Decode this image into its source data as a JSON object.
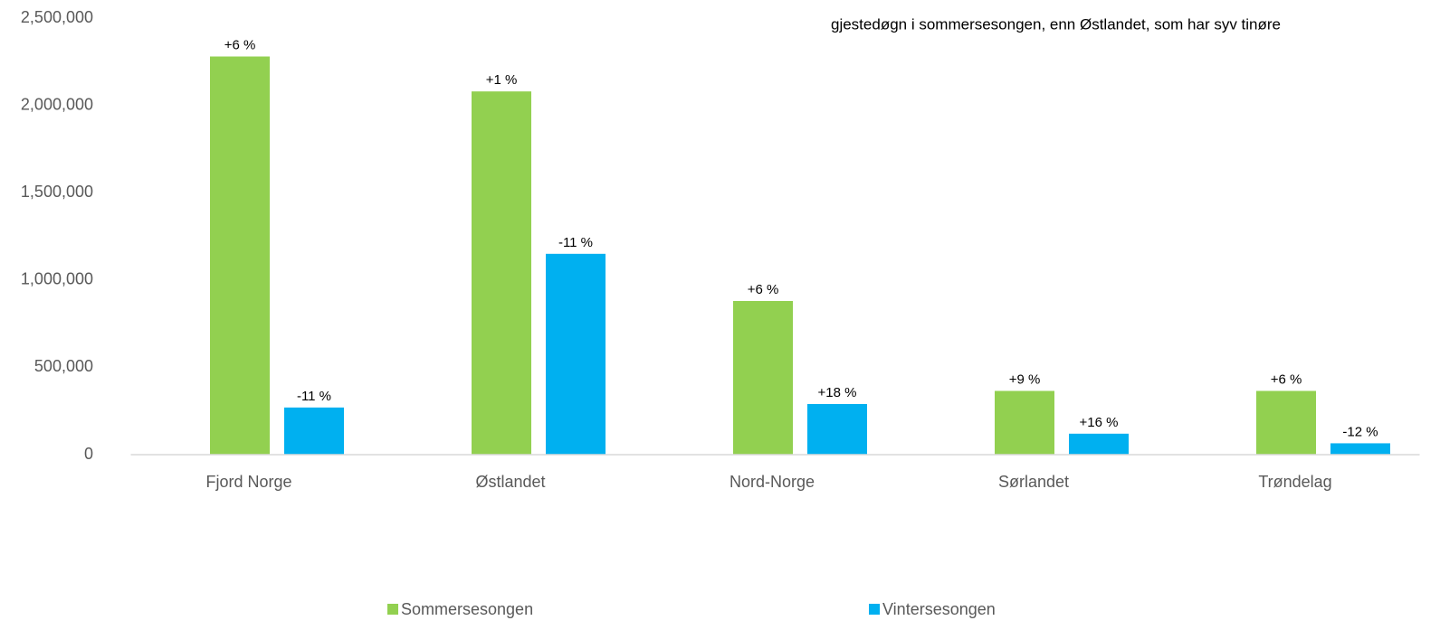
{
  "chart_data": {
    "type": "bar",
    "annotation": "gjestedøgn i sommersesongen, enn Østlandet, som har syv tinøre",
    "categories": [
      "Fjord Norge",
      "Østlandet",
      "Nord-Norge",
      "Sørlandet",
      "Trøndelag"
    ],
    "series": [
      {
        "name": "Sommersesongen",
        "color": "#92d050",
        "values": [
          2280000,
          2080000,
          880000,
          365000,
          365000
        ],
        "change_labels": [
          "+6 %",
          "+1 %",
          "+6 %",
          "+9 %",
          "+6 %"
        ]
      },
      {
        "name": "Vintersesongen",
        "color": "#00b0f0",
        "values": [
          270000,
          1150000,
          290000,
          120000,
          65000
        ],
        "change_labels": [
          "-11 %",
          "-11 %",
          "+18 %",
          "+16 %",
          "-12 %"
        ]
      }
    ],
    "ylim": [
      0,
      2500000
    ],
    "yticks": [
      0,
      {
        "value": 500000,
        "label": "500,000"
      },
      {
        "value": 1000000,
        "label": "1,000,000"
      },
      {
        "value": 1500000,
        "label": "1,500,000"
      },
      {
        "value": 2000000,
        "label": "2,000,000"
      },
      {
        "value": 2500000,
        "label": "2,500,000"
      }
    ],
    "grid": false
  }
}
